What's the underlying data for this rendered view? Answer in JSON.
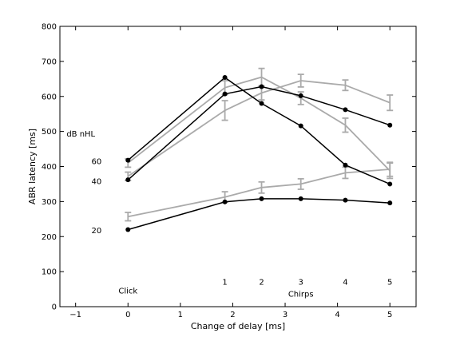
{
  "chart_data": {
    "type": "line",
    "xlabel": "Change of delay [ms]",
    "ylabel": "ABR latency [ms]",
    "xlim": [
      -1.3,
      5.5
    ],
    "ylim": [
      0,
      800
    ],
    "xticks": [
      -1,
      0,
      1,
      2,
      3,
      4,
      5
    ],
    "xtick_labels": [
      "−1",
      "0",
      "1",
      "2",
      "3",
      "4",
      "5"
    ],
    "yticks": [
      0,
      100,
      200,
      300,
      400,
      500,
      600,
      700,
      800
    ],
    "grid": false,
    "legend": "none",
    "series": [
      {
        "color": "#000000",
        "marker": "dot",
        "x": [
          0,
          1.85,
          2.55,
          3.3,
          4.15,
          5.0
        ],
        "y": [
          418,
          654,
          580,
          516,
          404,
          350
        ]
      },
      {
        "color": "#000000",
        "marker": "dot",
        "x": [
          0,
          1.85,
          2.55,
          3.3,
          4.15,
          5.0
        ],
        "y": [
          362,
          607,
          628,
          602,
          562,
          518
        ]
      },
      {
        "color": "#000000",
        "marker": "dot",
        "x": [
          0,
          1.85,
          2.55,
          3.3,
          4.15,
          5.0
        ],
        "y": [
          220,
          299,
          308,
          308,
          304,
          296
        ]
      },
      {
        "color": "#aaaaaa",
        "marker": "errorbar",
        "x": [
          0,
          1.85,
          2.55,
          3.3,
          4.15,
          5.0
        ],
        "y": [
          410,
          625,
          655,
          595,
          518,
          388
        ],
        "err": [
          12,
          20,
          25,
          18,
          20,
          22
        ]
      },
      {
        "color": "#aaaaaa",
        "marker": "errorbar",
        "x": [
          0,
          1.85,
          2.55,
          3.3,
          4.15,
          5.0
        ],
        "y": [
          372,
          560,
          610,
          645,
          632,
          582
        ],
        "err": [
          12,
          28,
          20,
          18,
          15,
          22
        ]
      },
      {
        "color": "#aaaaaa",
        "marker": "errorbar",
        "x": [
          0,
          1.85,
          2.55,
          3.3,
          4.15,
          5.0
        ],
        "y": [
          257,
          313,
          340,
          350,
          382,
          392
        ],
        "err": [
          12,
          15,
          16,
          15,
          16,
          20
        ]
      }
    ],
    "annotations": [
      {
        "id": "dbnhl",
        "text": "dB nHL",
        "x": -0.9,
        "y": 493
      },
      {
        "id": "lvl60",
        "text": "60",
        "x": -0.6,
        "y": 415
      },
      {
        "id": "lvl40",
        "text": "40",
        "x": -0.6,
        "y": 358
      },
      {
        "id": "lvl20",
        "text": "20",
        "x": -0.6,
        "y": 218
      },
      {
        "id": "click",
        "text": "Click",
        "x": 0,
        "y": 46
      },
      {
        "id": "chirp1",
        "text": "1",
        "x": 1.85,
        "y": 71
      },
      {
        "id": "chirp2",
        "text": "2",
        "x": 2.55,
        "y": 71
      },
      {
        "id": "chirp3",
        "text": "3",
        "x": 3.3,
        "y": 71
      },
      {
        "id": "chirp4",
        "text": "4",
        "x": 4.15,
        "y": 71
      },
      {
        "id": "chirp5",
        "text": "5",
        "x": 5.0,
        "y": 71
      },
      {
        "id": "chirps",
        "text": "Chirps",
        "x": 3.3,
        "y": 36
      }
    ]
  }
}
